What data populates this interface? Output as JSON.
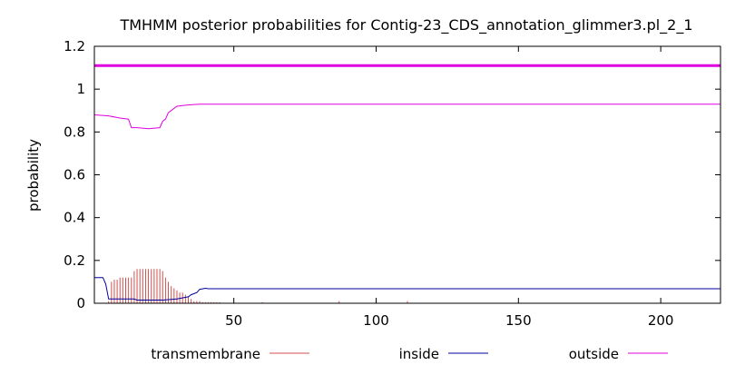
{
  "chart_data": {
    "type": "line",
    "title": "TMHMM posterior probabilities for Contig-23_CDS_annotation_glimmer3.pl_2_1",
    "xlabel": "",
    "ylabel": "probability",
    "xlim": [
      1,
      221
    ],
    "ylim": [
      0,
      1.2
    ],
    "x_ticks": [
      50,
      100,
      150,
      200
    ],
    "y_ticks": [
      0,
      0.2,
      0.4,
      0.6,
      0.8,
      1,
      1.2
    ],
    "y_tick_labels": [
      "0",
      "0.2",
      "0.4",
      "0.6",
      "0.8",
      "1",
      "1.2"
    ],
    "grid": false,
    "legend_position": "bottom",
    "reference_line": {
      "y": 1.11,
      "color": "#e000e0"
    },
    "series": [
      {
        "name": "transmembrane",
        "style": "impulses",
        "color": "#d05050",
        "x": [
          6,
          7,
          8,
          9,
          10,
          11,
          12,
          13,
          14,
          15,
          16,
          17,
          18,
          19,
          20,
          21,
          22,
          23,
          24,
          25,
          26,
          27,
          28,
          29,
          30,
          31,
          32,
          33,
          34,
          35,
          36,
          37,
          38,
          39,
          40,
          41,
          42,
          43,
          44,
          45,
          60,
          87,
          111
        ],
        "values": [
          0.01,
          0.1,
          0.11,
          0.11,
          0.12,
          0.12,
          0.12,
          0.12,
          0.12,
          0.15,
          0.16,
          0.16,
          0.16,
          0.16,
          0.16,
          0.16,
          0.16,
          0.16,
          0.16,
          0.15,
          0.12,
          0.1,
          0.08,
          0.07,
          0.06,
          0.05,
          0.05,
          0.04,
          0.03,
          0.02,
          0.01,
          0.01,
          0.01,
          0.005,
          0.005,
          0.005,
          0.005,
          0.005,
          0.005,
          0.005,
          0.005,
          0.01,
          0.01
        ]
      },
      {
        "name": "inside",
        "style": "line",
        "color": "#0000a0",
        "x": [
          1,
          4,
          5,
          6,
          7,
          15,
          16,
          25,
          30,
          34,
          35,
          37,
          38,
          40,
          41,
          221
        ],
        "values": [
          0.12,
          0.12,
          0.09,
          0.02,
          0.02,
          0.02,
          0.015,
          0.015,
          0.02,
          0.03,
          0.04,
          0.05,
          0.065,
          0.07,
          0.068,
          0.068
        ]
      },
      {
        "name": "outside",
        "style": "line",
        "color": "#e000e0",
        "x": [
          1,
          6,
          10,
          13,
          14,
          15,
          16,
          20,
          24,
          25,
          26,
          27,
          30,
          33,
          36,
          38,
          40,
          221
        ],
        "values": [
          0.88,
          0.875,
          0.865,
          0.86,
          0.82,
          0.82,
          0.82,
          0.815,
          0.82,
          0.85,
          0.86,
          0.89,
          0.92,
          0.925,
          0.928,
          0.93,
          0.93,
          0.93
        ]
      }
    ]
  }
}
